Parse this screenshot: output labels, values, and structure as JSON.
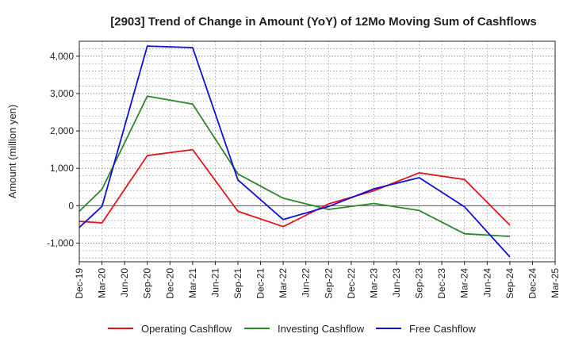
{
  "chart_data": {
    "type": "line",
    "title": "[2903]  Trend of Change in Amount (YoY) of 12Mo Moving Sum of Cashflows",
    "xlabel": "",
    "ylabel": "Amount (million yen)",
    "ylim": [
      -1500,
      4400
    ],
    "yticks": [
      -1000,
      0,
      1000,
      2000,
      3000,
      4000
    ],
    "ytick_labels": [
      "-1,000",
      "0",
      "1,000",
      "2,000",
      "3,000",
      "4,000"
    ],
    "categories": [
      "Dec-19",
      "Mar-20",
      "Jun-20",
      "Sep-20",
      "Dec-20",
      "Mar-21",
      "Jun-21",
      "Sep-21",
      "Dec-21",
      "Mar-22",
      "Jun-22",
      "Sep-22",
      "Dec-22",
      "Mar-23",
      "Jun-23",
      "Sep-23",
      "Dec-23",
      "Mar-24",
      "Jun-24",
      "Sep-24",
      "Dec-24",
      "Mar-25"
    ],
    "grid": true,
    "legend_position": "bottom",
    "series": [
      {
        "name": "Operating Cashflow",
        "color": "#e8141b",
        "x": [
          "Dec-19",
          "Mar-20",
          "Sep-20",
          "Mar-21",
          "Sep-21",
          "Mar-22",
          "Sep-22",
          "Mar-23",
          "Sep-23",
          "Mar-24",
          "Sep-24"
        ],
        "values": [
          -420,
          -460,
          1340,
          1500,
          -150,
          -560,
          50,
          400,
          880,
          700,
          -520
        ]
      },
      {
        "name": "Investing Cashflow",
        "color": "#2a8a2a",
        "x": [
          "Dec-19",
          "Mar-20",
          "Sep-20",
          "Mar-21",
          "Sep-21",
          "Mar-22",
          "Sep-22",
          "Mar-23",
          "Sep-23",
          "Mar-24",
          "Sep-24"
        ],
        "values": [
          -150,
          440,
          2930,
          2720,
          850,
          200,
          -100,
          60,
          -130,
          -750,
          -820
        ]
      },
      {
        "name": "Free Cashflow",
        "color": "#1010d8",
        "x": [
          "Dec-19",
          "Mar-20",
          "Sep-20",
          "Mar-21",
          "Sep-21",
          "Mar-22",
          "Sep-22",
          "Mar-23",
          "Sep-23",
          "Mar-24",
          "Sep-24"
        ],
        "values": [
          -580,
          -20,
          4270,
          4230,
          690,
          -370,
          -20,
          450,
          750,
          -30,
          -1370
        ]
      }
    ]
  }
}
